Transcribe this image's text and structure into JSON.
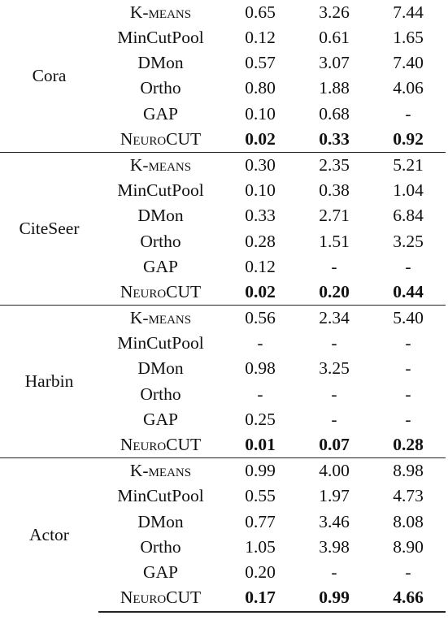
{
  "groups": [
    {
      "dataset": "Cora",
      "rows": [
        {
          "method": "K-means",
          "values": [
            "0.65",
            "3.26",
            "7.44"
          ]
        },
        {
          "method": "MinCutPool",
          "values": [
            "0.12",
            "0.61",
            "1.65"
          ]
        },
        {
          "method": "DMon",
          "values": [
            "0.57",
            "3.07",
            "7.40"
          ]
        },
        {
          "method": "Ortho",
          "values": [
            "0.80",
            "1.88",
            "4.06"
          ]
        },
        {
          "method": "GAP",
          "values": [
            "0.10",
            "0.68",
            "-"
          ]
        },
        {
          "method": "NeuroCUT",
          "values": [
            "0.02",
            "0.33",
            "0.92"
          ]
        }
      ]
    },
    {
      "dataset": "CiteSeer",
      "rows": [
        {
          "method": "K-means",
          "values": [
            "0.30",
            "2.35",
            "5.21"
          ]
        },
        {
          "method": "MinCutPool",
          "values": [
            "0.10",
            "0.38",
            "1.04"
          ]
        },
        {
          "method": "DMon",
          "values": [
            "0.33",
            "2.71",
            "6.84"
          ]
        },
        {
          "method": "Ortho",
          "values": [
            "0.28",
            "1.51",
            "3.25"
          ]
        },
        {
          "method": "GAP",
          "values": [
            "0.12",
            "-",
            "-"
          ]
        },
        {
          "method": "NeuroCUT",
          "values": [
            "0.02",
            "0.20",
            "0.44"
          ]
        }
      ]
    },
    {
      "dataset": "Harbin",
      "rows": [
        {
          "method": "K-means",
          "values": [
            "0.56",
            "2.34",
            "5.40"
          ]
        },
        {
          "method": "MinCutPool",
          "values": [
            "-",
            "-",
            "-"
          ]
        },
        {
          "method": "DMon",
          "values": [
            "0.98",
            "3.25",
            "-"
          ]
        },
        {
          "method": "Ortho",
          "values": [
            "-",
            "-",
            "-"
          ]
        },
        {
          "method": "GAP",
          "values": [
            "0.25",
            "-",
            "-"
          ]
        },
        {
          "method": "NeuroCUT",
          "values": [
            "0.01",
            "0.07",
            "0.28"
          ]
        }
      ]
    },
    {
      "dataset": "Actor",
      "rows": [
        {
          "method": "K-means",
          "values": [
            "0.99",
            "4.00",
            "8.98"
          ]
        },
        {
          "method": "MinCutPool",
          "values": [
            "0.55",
            "1.97",
            "4.73"
          ]
        },
        {
          "method": "DMon",
          "values": [
            "0.77",
            "3.46",
            "8.08"
          ]
        },
        {
          "method": "Ortho",
          "values": [
            "1.05",
            "3.98",
            "8.90"
          ]
        },
        {
          "method": "GAP",
          "values": [
            "0.20",
            "-",
            "-"
          ]
        },
        {
          "method": "NeuroCUT",
          "values": [
            "0.17",
            "0.99",
            "4.66"
          ]
        }
      ]
    }
  ]
}
